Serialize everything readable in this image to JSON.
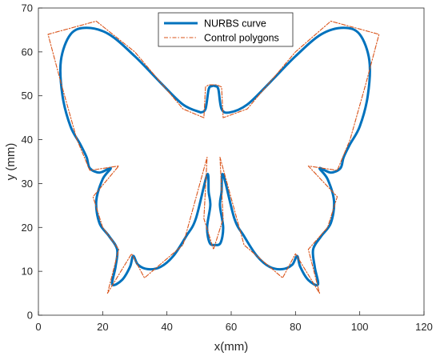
{
  "chart_data": {
    "type": "line",
    "title": "",
    "xlabel": "x(mm)",
    "ylabel": "y (mm)",
    "xlim": [
      0,
      120
    ],
    "ylim": [
      0,
      70
    ],
    "xticks": [
      0,
      20,
      40,
      60,
      80,
      100,
      120
    ],
    "yticks": [
      0,
      10,
      20,
      30,
      40,
      50,
      60,
      70
    ],
    "grid": false,
    "legend_placement": "top-center",
    "series": [
      {
        "name": "NURBS curve",
        "color": "#0072bd",
        "style": "solid",
        "segments": [
          [
            [
              50.5,
              46.2
            ],
            [
              45,
              48
            ],
            [
              38,
              53
            ],
            [
              30,
              59
            ],
            [
              22,
              64
            ],
            [
              15,
              65.5
            ],
            [
              10,
              64
            ],
            [
              7,
              58
            ],
            [
              7.5,
              50
            ],
            [
              10,
              43
            ],
            [
              13,
              39
            ],
            [
              15,
              36
            ],
            [
              16,
              33.5
            ],
            [
              19,
              32.5
            ],
            [
              22.5,
              33.5
            ],
            [
              20,
              31
            ],
            [
              18,
              26
            ],
            [
              19,
              21
            ],
            [
              22,
              18
            ],
            [
              24.5,
              15
            ],
            [
              24,
              11
            ],
            [
              23,
              7
            ],
            [
              26,
              8
            ],
            [
              28.5,
              11
            ],
            [
              29.5,
              13.5
            ],
            [
              31,
              11.5
            ],
            [
              34,
              10.5
            ],
            [
              38,
              11
            ],
            [
              42,
              13.5
            ],
            [
              46,
              18
            ],
            [
              49,
              22
            ],
            [
              52.5,
              32
            ],
            [
              53,
              28
            ],
            [
              53.5,
              25
            ],
            [
              52.5,
              20
            ],
            [
              53.3,
              16.5
            ],
            [
              55,
              16
            ],
            [
              56.7,
              16.5
            ],
            [
              57.5,
              20
            ],
            [
              56.5,
              25
            ],
            [
              57,
              28
            ],
            [
              57.5,
              32
            ],
            [
              61,
              22
            ],
            [
              64,
              18
            ],
            [
              68,
              13.5
            ],
            [
              72,
              11
            ],
            [
              76,
              10.5
            ],
            [
              79,
              11.5
            ],
            [
              80.5,
              13.5
            ],
            [
              81.5,
              11
            ],
            [
              84,
              8
            ],
            [
              87,
              7
            ],
            [
              86,
              11
            ],
            [
              85.5,
              15
            ],
            [
              88,
              18
            ],
            [
              91,
              21
            ],
            [
              92,
              26
            ],
            [
              90,
              31
            ],
            [
              87.5,
              33.5
            ],
            [
              91,
              32.5
            ],
            [
              94,
              33.5
            ],
            [
              95,
              36
            ],
            [
              97,
              39
            ],
            [
              100,
              43
            ],
            [
              102.5,
              50
            ],
            [
              103,
              58
            ],
            [
              100,
              64
            ],
            [
              95,
              65.5
            ],
            [
              88,
              64
            ],
            [
              80,
              59
            ],
            [
              72,
              53
            ],
            [
              65,
              48
            ],
            [
              59.5,
              46.2
            ],
            [
              57,
              47
            ],
            [
              56,
              51.5
            ],
            [
              55,
              52.2
            ],
            [
              54,
              52.2
            ],
            [
              53,
              51.5
            ],
            [
              52,
              47
            ],
            [
              50.5,
              46.2
            ]
          ]
        ]
      },
      {
        "name": "Control polygons",
        "color": "#d95319",
        "style": "dash-dot",
        "segments": [
          [
            [
              51.5,
              45
            ],
            [
              45,
              47
            ],
            [
              30,
              60
            ],
            [
              18,
              67
            ],
            [
              3,
              64
            ],
            [
              7,
              53
            ],
            [
              12,
              40
            ],
            [
              16,
              33
            ],
            [
              25,
              34
            ],
            [
              17,
              27
            ],
            [
              20,
              20
            ],
            [
              25,
              15
            ],
            [
              21.5,
              5
            ],
            [
              29,
              14
            ],
            [
              33,
              8.5
            ],
            [
              45,
              16
            ],
            [
              52.5,
              36
            ],
            [
              51.5,
              22
            ],
            [
              54.5,
              15
            ],
            [
              57.5,
              22
            ],
            [
              56.5,
              36
            ],
            [
              64,
              16
            ],
            [
              76,
              8.5
            ],
            [
              80,
              14
            ],
            [
              87.5,
              5
            ],
            [
              84,
              15
            ],
            [
              90,
              20
            ],
            [
              93,
              27
            ],
            [
              84,
              34
            ],
            [
              93,
              33
            ],
            [
              97,
              40
            ],
            [
              102,
              53
            ],
            [
              106,
              64
            ],
            [
              91,
              67
            ],
            [
              80,
              60
            ],
            [
              65,
              47
            ],
            [
              57.5,
              45
            ],
            [
              57,
              52
            ],
            [
              55.5,
              52.5
            ],
            [
              53,
              52.5
            ],
            [
              52,
              52
            ],
            [
              51.5,
              45
            ]
          ]
        ]
      }
    ]
  }
}
